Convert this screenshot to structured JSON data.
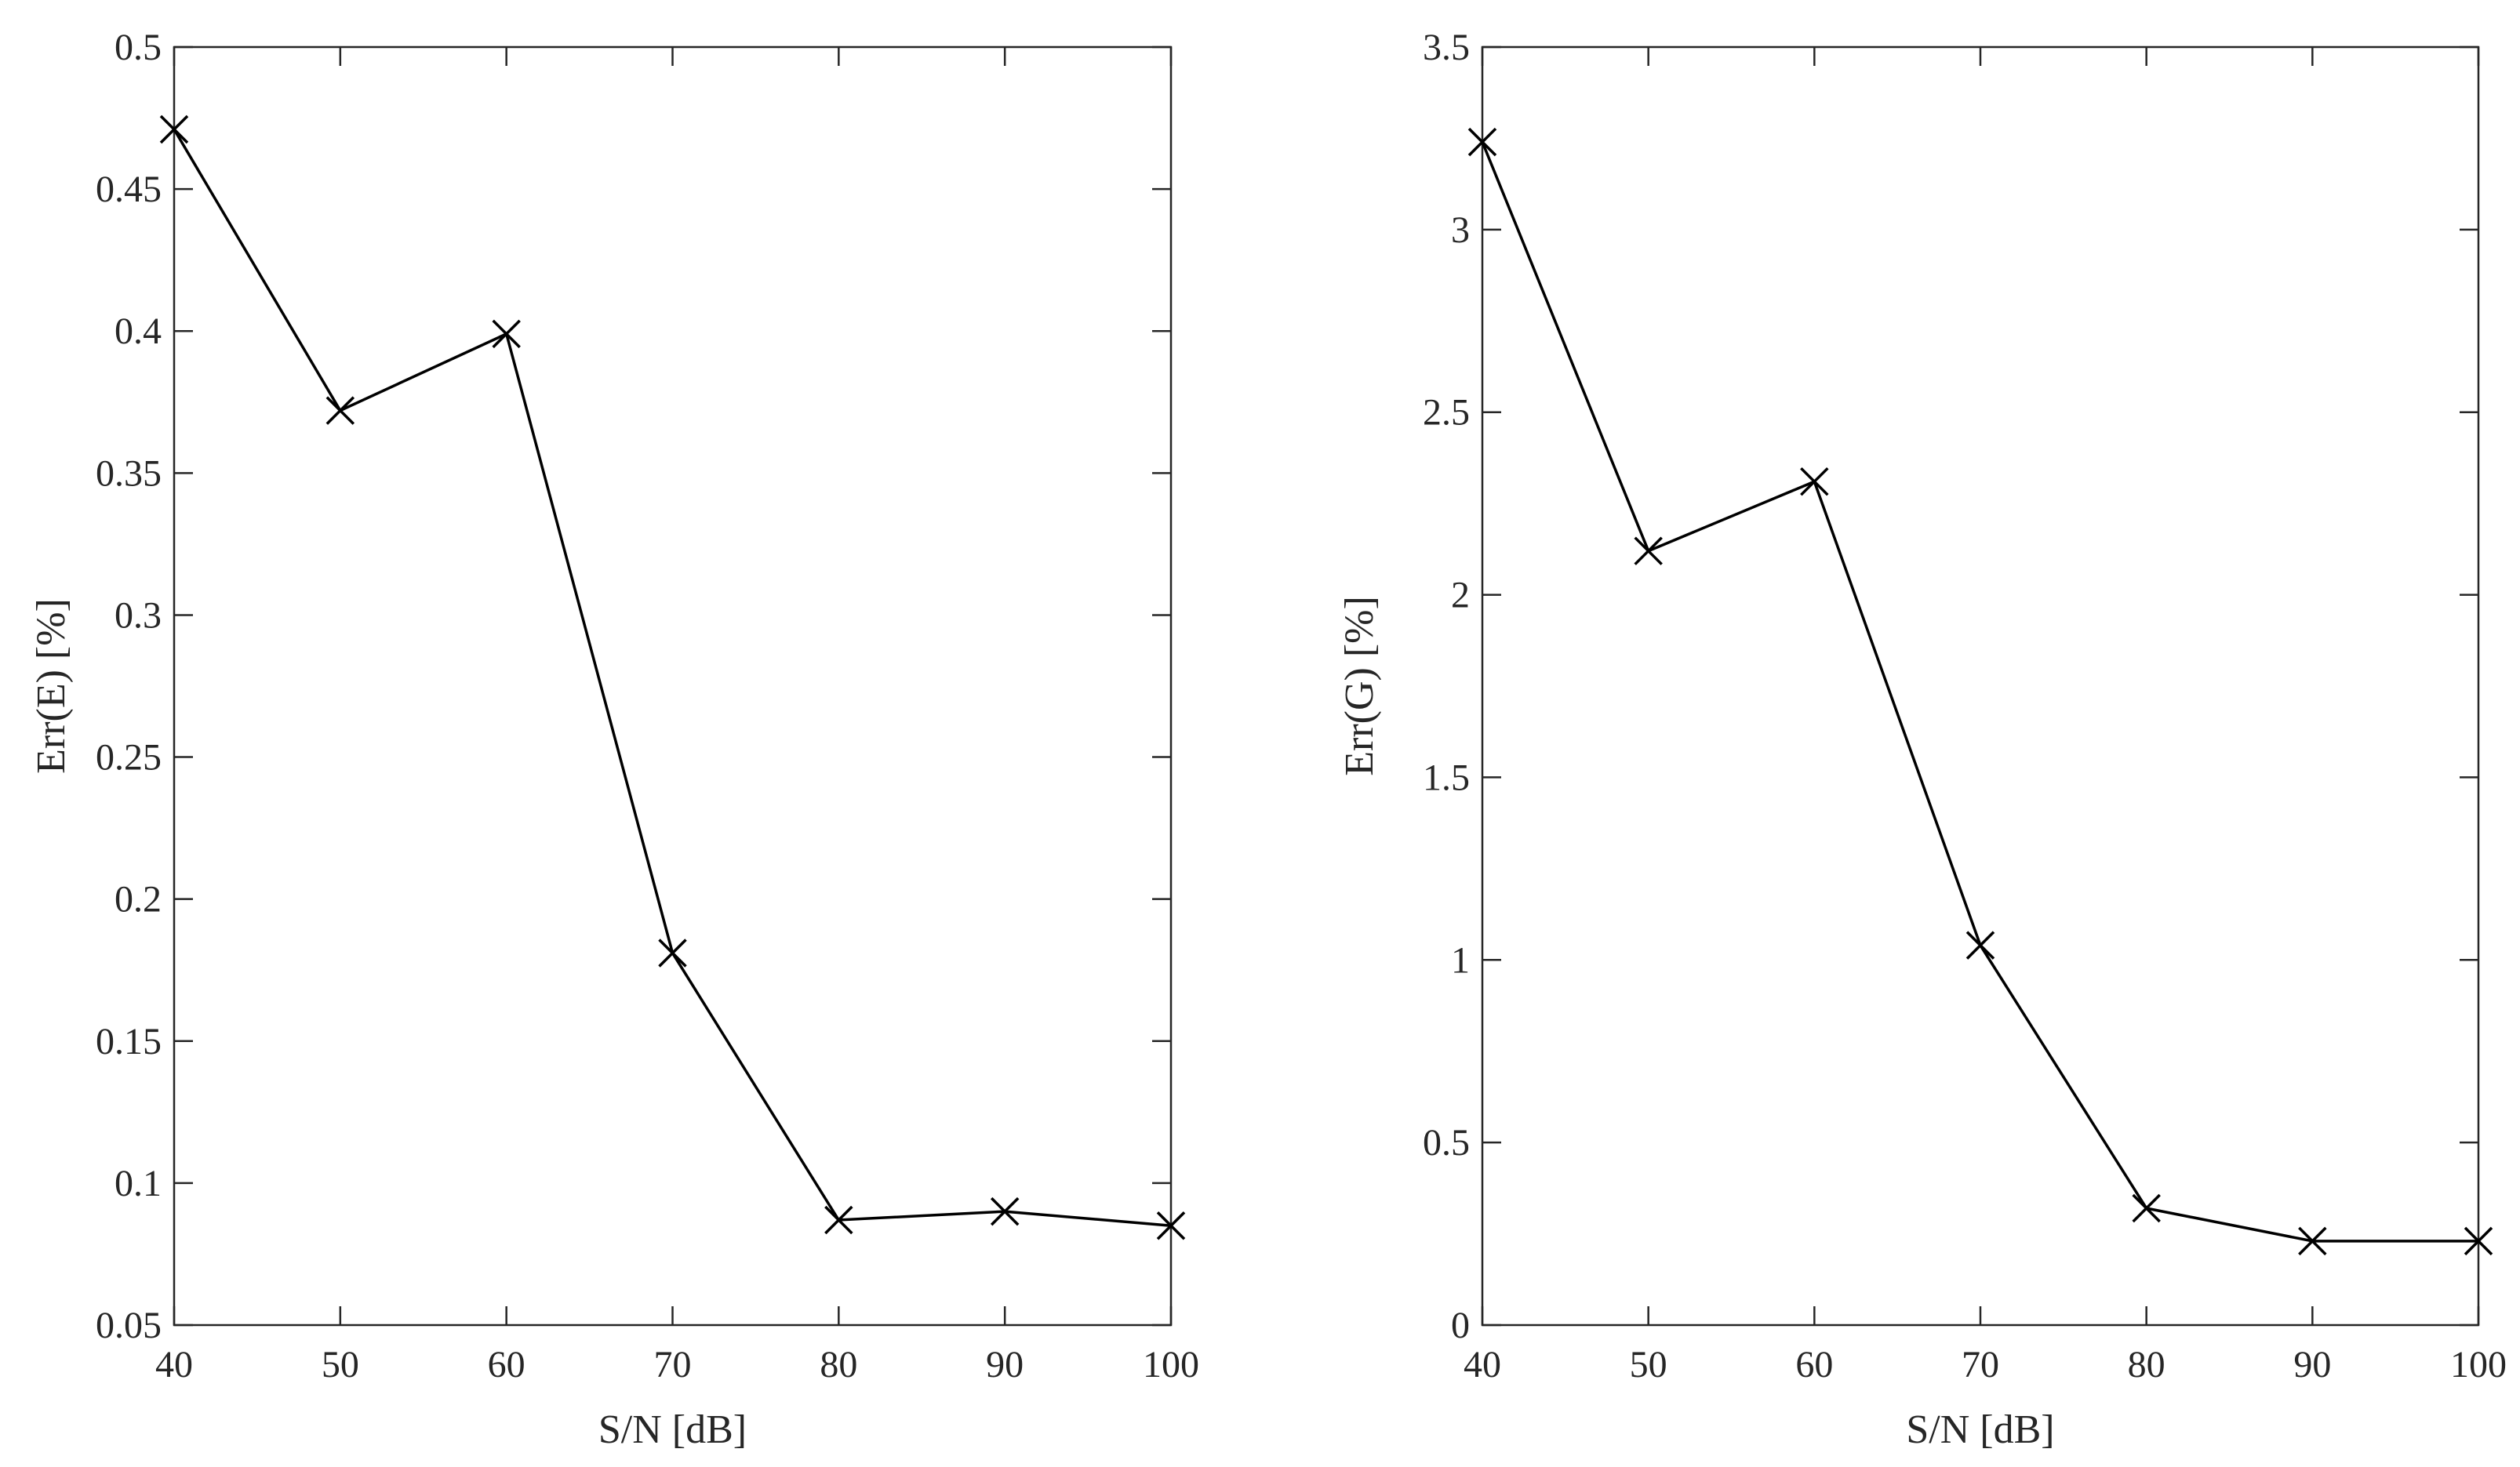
{
  "chart_data": [
    {
      "type": "line",
      "xlabel": "S/N [dB]",
      "ylabel": "Err(E) [%]",
      "xlim": [
        40,
        100
      ],
      "ylim": [
        0.05,
        0.5
      ],
      "xticks": [
        40,
        50,
        60,
        70,
        80,
        90,
        100
      ],
      "yticks": [
        0.05,
        0.1,
        0.15,
        0.2,
        0.25,
        0.3,
        0.35,
        0.4,
        0.45,
        0.5
      ],
      "xtick_labels": [
        "40",
        "50",
        "60",
        "70",
        "80",
        "90",
        "100"
      ],
      "ytick_labels": [
        "0.05",
        "0.1",
        "0.15",
        "0.2",
        "0.25",
        "0.3",
        "0.35",
        "0.4",
        "0.45",
        "0.5"
      ],
      "grid": false,
      "marker": "x",
      "line_color": "#000000",
      "series": [
        {
          "x": [
            40,
            50,
            60,
            70,
            80,
            90,
            100
          ],
          "y": [
            0.471,
            0.372,
            0.399,
            0.181,
            0.087,
            0.09,
            0.085
          ]
        }
      ]
    },
    {
      "type": "line",
      "xlabel": "S/N [dB]",
      "ylabel": "Err(G) [%]",
      "xlim": [
        40,
        100
      ],
      "ylim": [
        0,
        3.5
      ],
      "xticks": [
        40,
        50,
        60,
        70,
        80,
        90,
        100
      ],
      "yticks": [
        0,
        0.5,
        1,
        1.5,
        2,
        2.5,
        3,
        3.5
      ],
      "xtick_labels": [
        "40",
        "50",
        "60",
        "70",
        "80",
        "90",
        "100"
      ],
      "ytick_labels": [
        "0",
        "0.5",
        "1",
        "1.5",
        "2",
        "2.5",
        "3",
        "3.5"
      ],
      "grid": false,
      "marker": "x",
      "line_color": "#000000",
      "series": [
        {
          "x": [
            40,
            50,
            60,
            70,
            80,
            90,
            100
          ],
          "y": [
            3.24,
            2.12,
            2.31,
            1.04,
            0.32,
            0.23,
            0.23
          ]
        }
      ]
    }
  ]
}
